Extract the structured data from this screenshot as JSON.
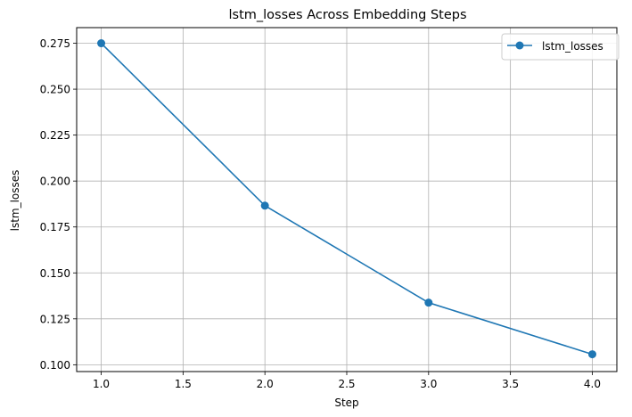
{
  "chart_data": {
    "type": "line",
    "title": "lstm_losses Across Embedding Steps",
    "xlabel": "Step",
    "ylabel": "lstm_losses",
    "x": [
      1.0,
      2.0,
      3.0,
      4.0
    ],
    "series": [
      {
        "name": "lstm_losses",
        "values": [
          0.275,
          0.1866,
          0.1338,
          0.1057
        ],
        "color": "#1f77b4",
        "marker": "circle"
      }
    ],
    "xlim": [
      0.85,
      4.15
    ],
    "ylim": [
      0.0963,
      0.2835
    ],
    "xticks": [
      1.0,
      1.5,
      2.0,
      2.5,
      3.0,
      3.5,
      4.0
    ],
    "xtick_labels": [
      "1.0",
      "1.5",
      "2.0",
      "2.5",
      "3.0",
      "3.5",
      "4.0"
    ],
    "yticks": [
      0.1,
      0.125,
      0.15,
      0.175,
      0.2,
      0.225,
      0.25,
      0.275
    ],
    "ytick_labels": [
      "0.100",
      "0.125",
      "0.150",
      "0.175",
      "0.200",
      "0.225",
      "0.250",
      "0.275"
    ],
    "grid": true,
    "legend": "top-right"
  }
}
